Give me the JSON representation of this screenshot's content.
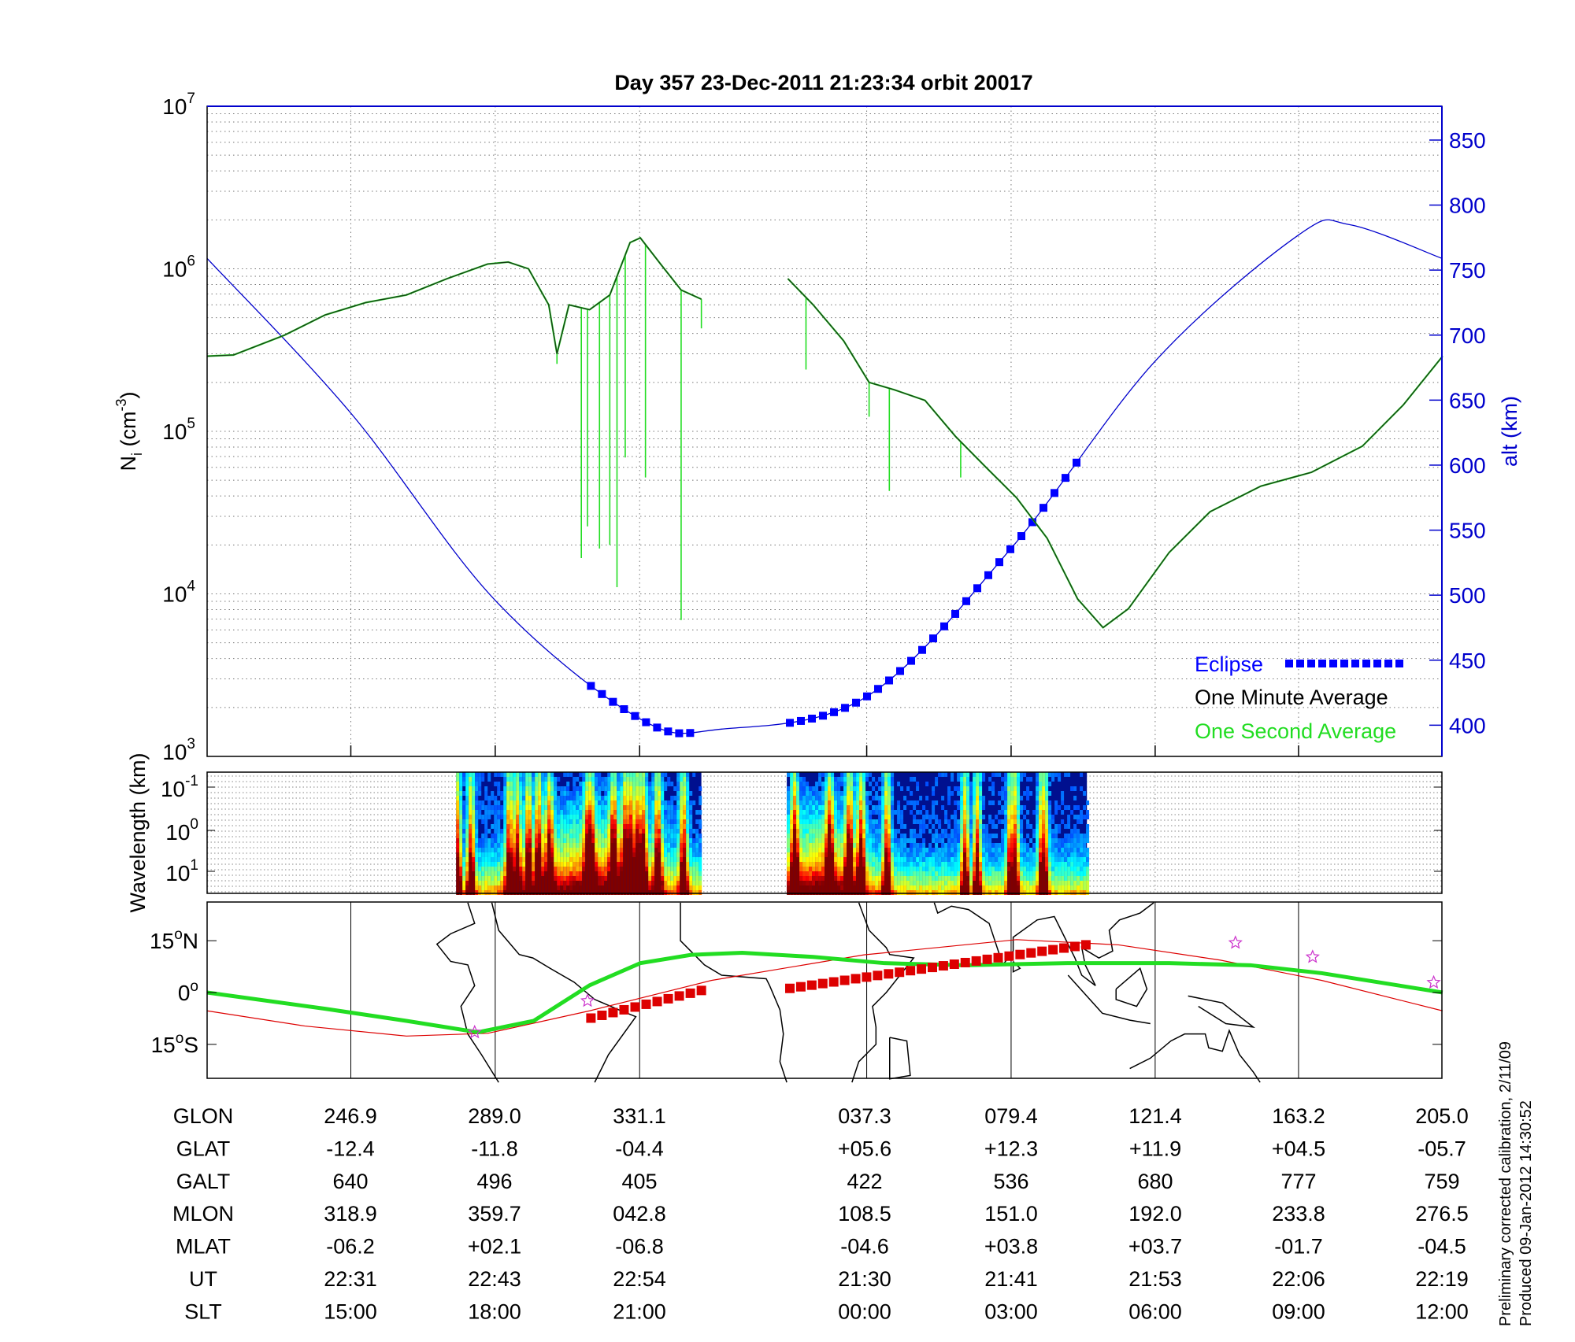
{
  "title": "Day 357  23-Dec-2011 21:23:34   orbit 20017",
  "footer": {
    "line1": "Preliminary corrected calibration, 2/11/09",
    "line2": "Produced 09-Jan-2012 14:30:52"
  },
  "colors": {
    "eclipse": "#0000ff",
    "minute": "#1a3a1a",
    "second": "#22dd22",
    "alt": "#0000cc",
    "track": "#dd0000",
    "dip_equator": "#22dd22",
    "stars": "#cc33cc"
  },
  "chart_data": [
    {
      "type": "line",
      "title": "Day 357  23-Dec-2011 21:23:34   orbit 20017",
      "xlabel": "GLON",
      "xlim": [
        205,
        565
      ],
      "x_ticks": [
        246.9,
        289.0,
        331.1,
        397.3,
        439.4,
        481.4,
        523.2
      ],
      "ylabel_left": {
        "main": "N",
        "sub": "i",
        "unit": " (cm",
        "exp": "-3",
        "close": ")"
      },
      "ylim_left": [
        1000,
        10000000
      ],
      "yscale_left": "log",
      "y_ticks_left": [
        {
          "base": "10",
          "exp": "3",
          "v": 3
        },
        {
          "base": "10",
          "exp": "4",
          "v": 4
        },
        {
          "base": "10",
          "exp": "5",
          "v": 5
        },
        {
          "base": "10",
          "exp": "6",
          "v": 6
        },
        {
          "base": "10",
          "exp": "7",
          "v": 7
        }
      ],
      "ylabel_right": "alt (km)",
      "ylim_right": [
        376,
        876
      ],
      "y_ticks_right": [
        "400",
        "450",
        "500",
        "550",
        "600",
        "650",
        "700",
        "750",
        "800",
        "850"
      ],
      "grid": true,
      "legend": {
        "placement": "bottom-right",
        "entries": [
          "Eclipse",
          "One Minute Average",
          "One Second Average"
        ]
      },
      "series": [
        {
          "name": "One Minute Average",
          "axis": "left",
          "segments": [
            [
              [
                205,
                290000.0
              ],
              [
                212.7,
                295000.0
              ],
              [
                227.5,
                390000.0
              ],
              [
                239.4,
                520000.0
              ],
              [
                251.3,
                620000.0
              ],
              [
                263.1,
                690000.0
              ],
              [
                275,
                870000.0
              ],
              [
                286.8,
                1070000.0
              ],
              [
                292.8,
                1100000.0
              ],
              [
                298.7,
                1000000.0
              ],
              [
                304.6,
                600000.0
              ],
              [
                307,
                300000.0
              ],
              [
                310.5,
                600000.0
              ],
              [
                316.5,
                560000.0
              ],
              [
                322.4,
                690000.0
              ],
              [
                328.3,
                1450000.0
              ],
              [
                331.3,
                1550000.0
              ],
              [
                337.2,
                1070000.0
              ],
              [
                343.2,
                740000.0
              ],
              [
                349.1,
                650000.0
              ]
            ],
            [
              [
                374.3,
                870000.0
              ],
              [
                381.7,
                600000.0
              ],
              [
                390.6,
                360000.0
              ],
              [
                398,
                200000.0
              ],
              [
                405.4,
                180000.0
              ],
              [
                414.3,
                155000.0
              ],
              [
                423.2,
                93000.0
              ],
              [
                432.1,
                60000.0
              ],
              [
                441,
                39000.0
              ],
              [
                449.9,
                22000.0
              ],
              [
                458.8,
                9300.0
              ],
              [
                466.2,
                6200.0
              ],
              [
                473.6,
                8100.0
              ],
              [
                485.5,
                18000.0
              ],
              [
                497.4,
                32000.0
              ],
              [
                512.2,
                46000.0
              ],
              [
                527,
                56000.0
              ],
              [
                541.8,
                81000.0
              ],
              [
                553.7,
                145000.0
              ],
              [
                565.2,
                290000.0
              ]
            ]
          ]
        },
        {
          "name": "One Second Average",
          "axis": "left",
          "spikes": [
            [
              307,
              260000.0
            ],
            [
              314.1,
              16600.0
            ],
            [
              315.9,
              26000.0
            ],
            [
              319.4,
              19000.0
            ],
            [
              322.4,
              20000.0
            ],
            [
              324.5,
              11000.0
            ],
            [
              326.9,
              69000.0
            ],
            [
              332.8,
              52000.0
            ],
            [
              343.2,
              6900.0
            ],
            [
              349.1,
              430000.0
            ],
            [
              379.6,
              240000.0
            ],
            [
              398,
              123000.0
            ],
            [
              403.9,
              43000.0
            ],
            [
              424.7,
              52000.0
            ]
          ]
        },
        {
          "name": "alt (km)",
          "axis": "right",
          "points": [
            [
              205,
              759
            ],
            [
              246.9,
              640
            ],
            [
              289.0,
              496
            ],
            [
              331.1,
              405
            ],
            [
              355,
              397
            ],
            [
              397.3,
              422
            ],
            [
              439.4,
              536
            ],
            [
              481.4,
              680
            ],
            [
              523.2,
              777
            ],
            [
              538,
              785
            ],
            [
              565,
              759
            ]
          ]
        },
        {
          "name": "Eclipse",
          "axis": "right",
          "segments": [
            [
              316.9,
              346.9
            ],
            [
              374.9,
              461.2
            ]
          ]
        }
      ]
    },
    {
      "type": "heatmap",
      "ylabel": "Wavelength (km)",
      "y_ticks": [
        {
          "base": "10",
          "exp": "-1"
        },
        {
          "base": "10",
          "exp": "0"
        },
        {
          "base": "10",
          "exp": "1"
        }
      ],
      "blocks_glon": [
        [
          277.6,
          349.1
        ],
        [
          374.0,
          461.5
        ]
      ],
      "colormap": "jet"
    },
    {
      "type": "map",
      "y_ticks": [
        {
          "label": "15",
          "deg": "o",
          "hemi": "N",
          "lat": 15
        },
        {
          "label": "0",
          "deg": "o",
          "hemi": "",
          "lat": 0
        },
        {
          "label": "15",
          "deg": "o",
          "hemi": "S",
          "lat": -15
        }
      ],
      "satellite_track": [
        [
          205,
          -5.3
        ],
        [
          233.5,
          -9.7
        ],
        [
          263.1,
          -12.6
        ],
        [
          286.8,
          -11.8
        ],
        [
          316.5,
          -5.3
        ],
        [
          352,
          3.5
        ],
        [
          396.5,
          10.9
        ],
        [
          441,
          15.3
        ],
        [
          470.7,
          13.8
        ],
        [
          500.3,
          9.4
        ],
        [
          530,
          3.5
        ],
        [
          565.2,
          -5.3
        ]
      ],
      "dip_equator": [
        [
          205,
          0
        ],
        [
          239.4,
          -4.7
        ],
        [
          263.1,
          -8.2
        ],
        [
          283.9,
          -11.5
        ],
        [
          300.2,
          -8.2
        ],
        [
          316.5,
          2.1
        ],
        [
          331.3,
          8.5
        ],
        [
          346.1,
          10.9
        ],
        [
          361,
          11.5
        ],
        [
          381.7,
          10.3
        ],
        [
          402.5,
          8.5
        ],
        [
          426.2,
          7.9
        ],
        [
          455.8,
          8.5
        ],
        [
          485.5,
          8.5
        ],
        [
          509.2,
          7.9
        ],
        [
          530,
          5.6
        ],
        [
          565.2,
          0
        ]
      ],
      "eclipse_track": [
        [
          [
            316.9,
            -7.4
          ],
          [
            349.1,
            0.6
          ]
        ],
        [
          [
            374.9,
            1.2
          ],
          [
            461.2,
            13.8
          ]
        ]
      ],
      "stars": [
        [
          283,
          -11.5
        ],
        [
          315.9,
          -2.4
        ],
        [
          504.8,
          14.4
        ],
        [
          527.3,
          10.3
        ],
        [
          562.6,
          2.9
        ]
      ]
    }
  ],
  "table": {
    "rows": [
      {
        "label": "GLON",
        "values": [
          "246.9",
          "289.0",
          "331.1",
          "037.3",
          "079.4",
          "121.4",
          "163.2",
          "205.0"
        ]
      },
      {
        "label": "GLAT",
        "values": [
          "-12.4",
          "-11.8",
          "-04.4",
          "+05.6",
          "+12.3",
          "+11.9",
          "+04.5",
          "-05.7"
        ]
      },
      {
        "label": "GALT",
        "values": [
          "640",
          "496",
          "405",
          "422",
          "536",
          "680",
          "777",
          "759"
        ]
      },
      {
        "label": "MLON",
        "values": [
          "318.9",
          "359.7",
          "042.8",
          "108.5",
          "151.0",
          "192.0",
          "233.8",
          "276.5"
        ]
      },
      {
        "label": "MLAT",
        "values": [
          "-06.2",
          "+02.1",
          "-06.8",
          "-04.6",
          "+03.8",
          "+03.7",
          "-01.7",
          "-04.5"
        ]
      },
      {
        "label": "UT",
        "values": [
          "22:31",
          "22:43",
          "22:54",
          "21:30",
          "21:41",
          "21:53",
          "22:06",
          "22:19"
        ]
      },
      {
        "label": "SLT",
        "values": [
          "15:00",
          "18:00",
          "21:00",
          "00:00",
          "03:00",
          "06:00",
          "09:00",
          "12:00"
        ]
      }
    ]
  }
}
